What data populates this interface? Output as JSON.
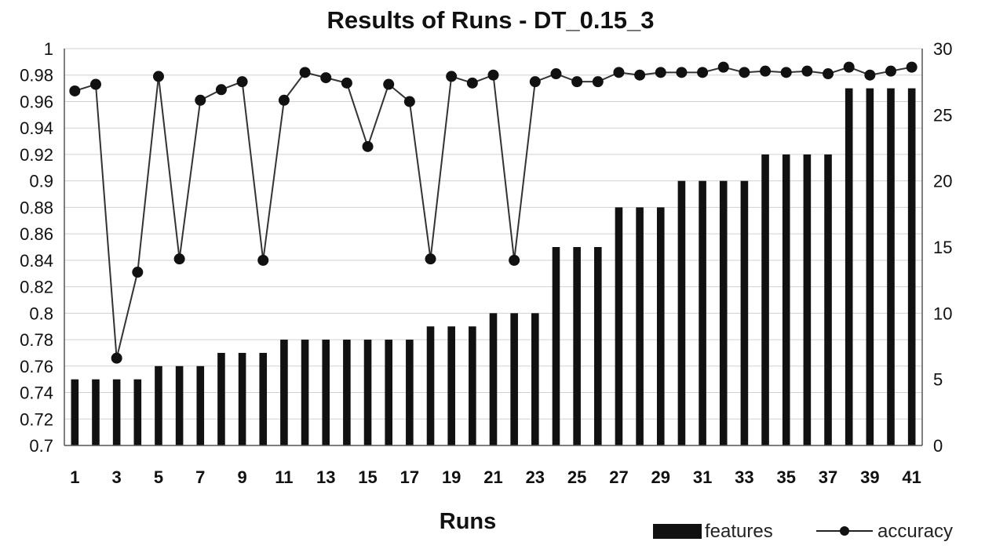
{
  "chart_data": {
    "type": "bar+line",
    "title": "Results of Runs - DT_0.15_3",
    "xlabel": "Runs",
    "x": [
      1,
      2,
      3,
      4,
      5,
      6,
      7,
      8,
      9,
      10,
      11,
      12,
      13,
      14,
      15,
      16,
      17,
      18,
      19,
      20,
      21,
      22,
      23,
      24,
      25,
      26,
      27,
      28,
      29,
      30,
      31,
      32,
      33,
      34,
      35,
      36,
      37,
      38,
      39,
      40,
      41
    ],
    "x_tick_labels": [
      "1",
      "3",
      "5",
      "7",
      "9",
      "11",
      "13",
      "15",
      "17",
      "19",
      "21",
      "23",
      "25",
      "27",
      "29",
      "31",
      "33",
      "35",
      "37",
      "39",
      "41"
    ],
    "y_left": {
      "ylim": [
        0.7,
        1.0
      ],
      "ticks": [
        "0.7",
        "0.72",
        "0.74",
        "0.76",
        "0.78",
        "0.8",
        "0.82",
        "0.84",
        "0.86",
        "0.88",
        "0.9",
        "0.92",
        "0.94",
        "0.96",
        "0.98",
        "1"
      ]
    },
    "y_right": {
      "ylim": [
        0,
        30
      ],
      "ticks": [
        "0",
        "5",
        "10",
        "15",
        "20",
        "25",
        "30"
      ]
    },
    "grid": "horizontal",
    "legend_position": "bottom-right",
    "series": [
      {
        "name": "features",
        "type": "bar",
        "axis": "right",
        "values": [
          5,
          5,
          5,
          5,
          6,
          6,
          6,
          7,
          7,
          7,
          8,
          8,
          8,
          8,
          8,
          8,
          8,
          9,
          9,
          9,
          10,
          10,
          10,
          15,
          15,
          15,
          18,
          18,
          18,
          20,
          20,
          20,
          20,
          22,
          22,
          22,
          22,
          27,
          27,
          27,
          27
        ]
      },
      {
        "name": "accuracy",
        "type": "line",
        "axis": "left",
        "values": [
          0.968,
          0.973,
          0.766,
          0.831,
          0.979,
          0.841,
          0.961,
          0.969,
          0.975,
          0.84,
          0.961,
          0.982,
          0.978,
          0.974,
          0.926,
          0.973,
          0.96,
          0.841,
          0.979,
          0.974,
          0.98,
          0.84,
          0.975,
          0.981,
          0.975,
          0.975,
          0.982,
          0.98,
          0.982,
          0.982,
          0.982,
          0.986,
          0.982,
          0.983,
          0.982,
          0.983,
          0.981,
          0.986,
          0.98,
          0.983,
          0.986
        ]
      }
    ]
  }
}
